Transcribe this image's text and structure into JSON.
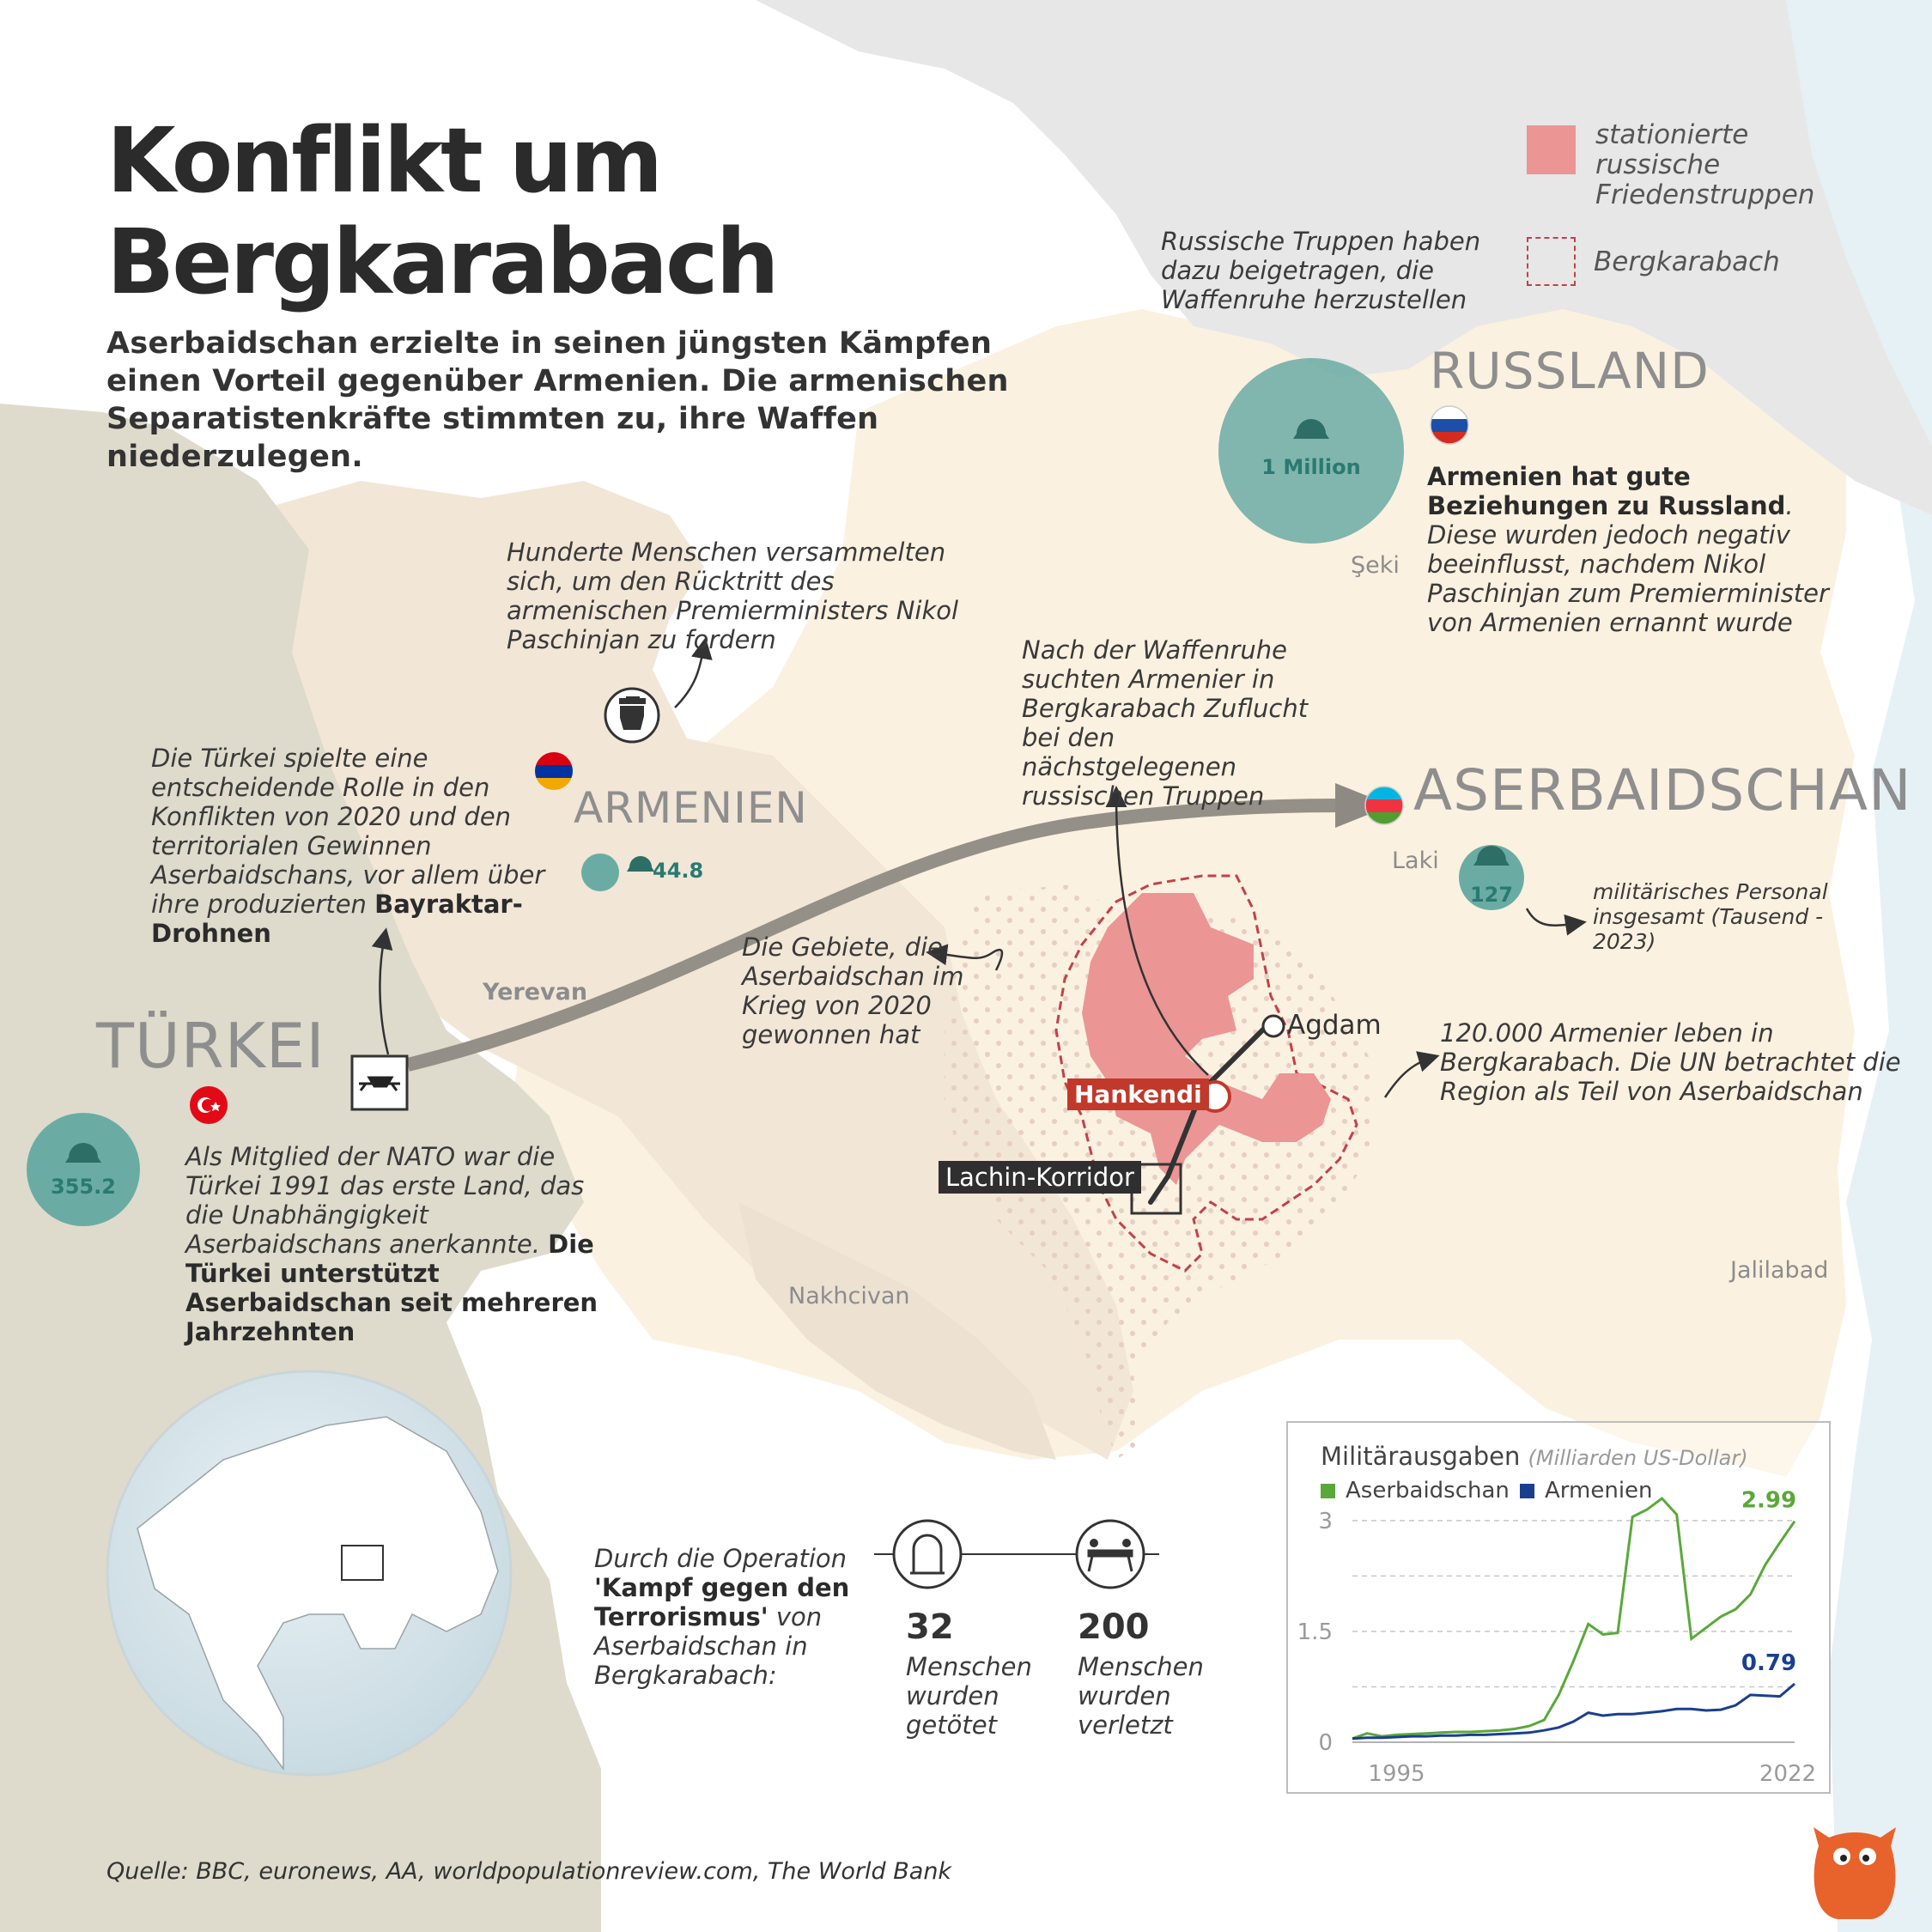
{
  "title_line1": "Konflikt um",
  "title_line2": "Bergkarabach",
  "subtitle": "Aserbaidschan erzielte in seinen jüngsten Kämpfen einen Vorteil gegenüber Armenien. Die armenischen Separatistenkräfte stimmten zu, ihre Waffen niederzulegen.",
  "legend": {
    "peacekeepers": "stationierte russische Friedenstruppen",
    "nk": "Bergkarabach"
  },
  "countries": {
    "russia": "RUSSLAND",
    "armenia": "ARMENIEN",
    "azerbaijan": "ASERBAIDSCHAN",
    "turkey": "TÜRKEI"
  },
  "cities": {
    "seki": "Şeki",
    "laki": "Laki",
    "yerevan": "Yerevan",
    "nakhchivan": "Nakhcivan",
    "jalilabad": "Jalilabad",
    "agdam": "Agdam",
    "hankendi": "Hankendi",
    "lachin": "Lachin-Korridor"
  },
  "military": {
    "russia": "1 Million",
    "armenia": "44.8",
    "azerbaijan": "127",
    "turkey": "355.2",
    "note": "militärisches Personal insgesamt (Tausend - 2023)"
  },
  "notes": {
    "russian_troops": "Russische Truppen haben dazu beigetragen, die Waffenruhe herzustellen",
    "russia_bold": "Armenien hat gute Beziehungen zu Russland",
    "russia_rest": ". Diese wurden jedoch negativ beeinflusst, nachdem Nikol Paschinjan zum Premierminister von Armenien ernannt wurde",
    "protest": "Hunderte Menschen versammelten sich, um den Rücktritt des armenischen Premierministers Nikol Paschinjan zu fordern",
    "ceasefire": "Nach der Waffenruhe suchten Armenier in Bergkarabach Zuflucht bei den nächstgelegenen russischen Truppen",
    "turkey_role": "Die Türkei spielte eine entscheidende Rolle in den Konflikten von 2020 und den territorialen Gewinnen Aserbaidschans, vor allem über ihre produzierten ",
    "turkey_role_bold": "Bayraktar-Drohnen",
    "areas_2020": "Die Gebiete, die Aserbaidschan im Krieg von 2020 gewonnen hat",
    "armenians": "120.000 Armenier leben in Bergkarabach. Die UN betrachtet die Region als Teil von Aserbaidschan",
    "nato": "Als Mitglied der NATO war die Türkei 1991 das erste Land, das die Unabhängigkeit Aserbaidschans anerkannte. ",
    "nato_bold": "Die Türkei unterstützt Aserbaidschan seit mehreren Jahrzehnten"
  },
  "operation": {
    "intro_pre": "Durch die Operation",
    "intro_bold": "'Kampf gegen den Terrorismus'",
    "intro_post": " von Aserbaidschan in Bergkarabach:",
    "killed_num": "32",
    "killed_text": "Menschen wurden getötet",
    "injured_num": "200",
    "injured_text": "Menschen wurden verletzt"
  },
  "source": "Quelle: BBC, euronews, AA, worldpopulationreview.com, The World Bank",
  "colors": {
    "azerbaijan": "#fbf1e0",
    "armenia": "#f2e6d7",
    "turkey": "#dedbcc",
    "russia": "#e7e7e7",
    "peacekeepers": "#eb9595",
    "military_circle": "#6aaca3",
    "aze_series": "#5aa83a",
    "arm_series": "#1a3f8f"
  },
  "chart_data": {
    "type": "line",
    "title": "Militärausgaben",
    "unit": "(Milliarden US-Dollar)",
    "x_start": 1992,
    "x_end": 2022,
    "x_ticks": [
      "1995",
      "2022"
    ],
    "y_ticks": [
      "0",
      "1.5",
      "3"
    ],
    "ylim": [
      0,
      3.3
    ],
    "series": [
      {
        "name": "Aserbaidschan",
        "color": "#5aa83a",
        "end_label": "2.99",
        "values": [
          0.05,
          0.12,
          0.08,
          0.1,
          0.11,
          0.12,
          0.13,
          0.14,
          0.14,
          0.15,
          0.16,
          0.18,
          0.22,
          0.3,
          0.64,
          1.1,
          1.6,
          1.46,
          1.48,
          3.05,
          3.15,
          3.3,
          3.08,
          1.4,
          1.55,
          1.7,
          1.8,
          2.0,
          2.4,
          2.7,
          2.99
        ]
      },
      {
        "name": "Armenien",
        "color": "#1a3f8f",
        "end_label": "0.79",
        "values": [
          0.05,
          0.06,
          0.06,
          0.07,
          0.08,
          0.08,
          0.09,
          0.09,
          0.1,
          0.1,
          0.11,
          0.12,
          0.13,
          0.16,
          0.2,
          0.28,
          0.4,
          0.36,
          0.38,
          0.38,
          0.4,
          0.42,
          0.45,
          0.45,
          0.43,
          0.44,
          0.5,
          0.64,
          0.63,
          0.62,
          0.79
        ]
      }
    ]
  }
}
